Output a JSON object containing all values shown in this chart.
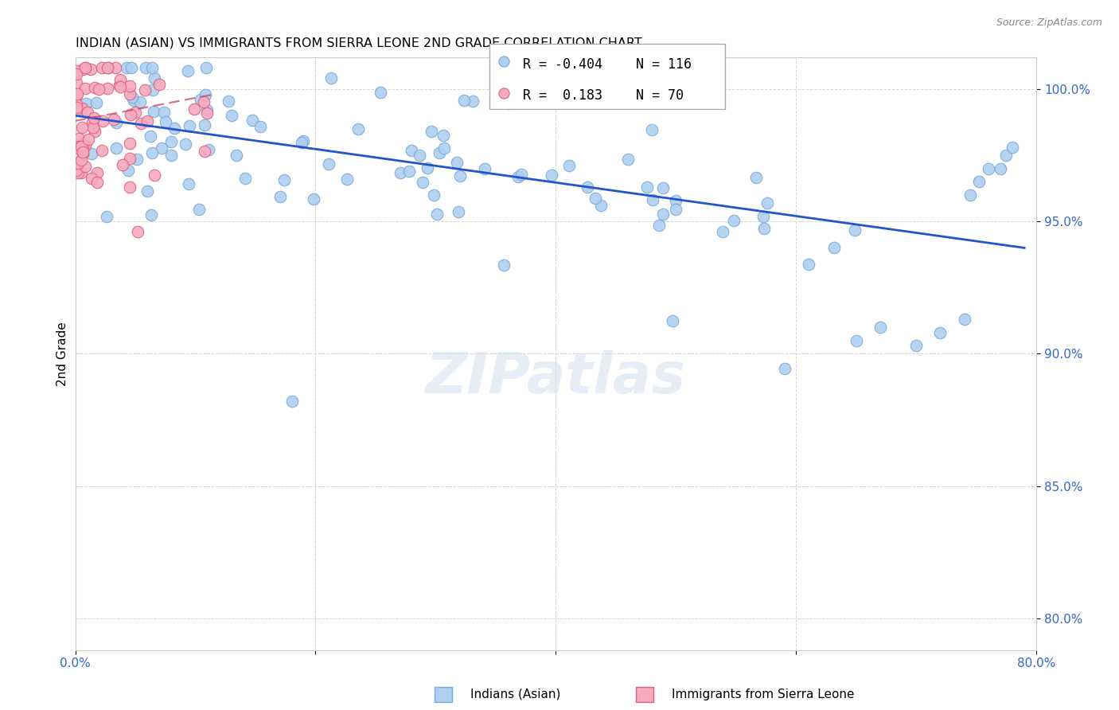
{
  "title": "INDIAN (ASIAN) VS IMMIGRANTS FROM SIERRA LEONE 2ND GRADE CORRELATION CHART",
  "source": "Source: ZipAtlas.com",
  "ylabel": "2nd Grade",
  "xlim": [
    0.0,
    0.8
  ],
  "ylim": [
    0.788,
    1.012
  ],
  "x_ticks": [
    0.0,
    0.2,
    0.4,
    0.6,
    0.8
  ],
  "x_tick_labels": [
    "0.0%",
    "",
    "",
    "",
    "80.0%"
  ],
  "y_ticks": [
    0.8,
    0.85,
    0.9,
    0.95,
    1.0
  ],
  "y_tick_labels": [
    "80.0%",
    "85.0%",
    "90.0%",
    "95.0%",
    "100.0%"
  ],
  "blue_color": "#aecff0",
  "blue_edge_color": "#7aaad8",
  "pink_color": "#f5aabe",
  "pink_edge_color": "#e06080",
  "blue_line_color": "#2255cc",
  "pink_line_color": "#cc4466",
  "label_blue": "Indians (Asian)",
  "label_pink": "Immigrants from Sierra Leone",
  "watermark": "ZIPatlas",
  "legend_r1_val": "-0.404",
  "legend_n1_val": "116",
  "legend_r2_val": "0.183",
  "legend_n2_val": "70",
  "blue_line_x0": 0.0,
  "blue_line_x1": 0.79,
  "blue_line_y0": 0.99,
  "blue_line_y1": 0.94,
  "pink_line_x0": 0.0,
  "pink_line_x1": 0.115,
  "pink_line_y0": 0.988,
  "pink_line_y1": 0.998
}
